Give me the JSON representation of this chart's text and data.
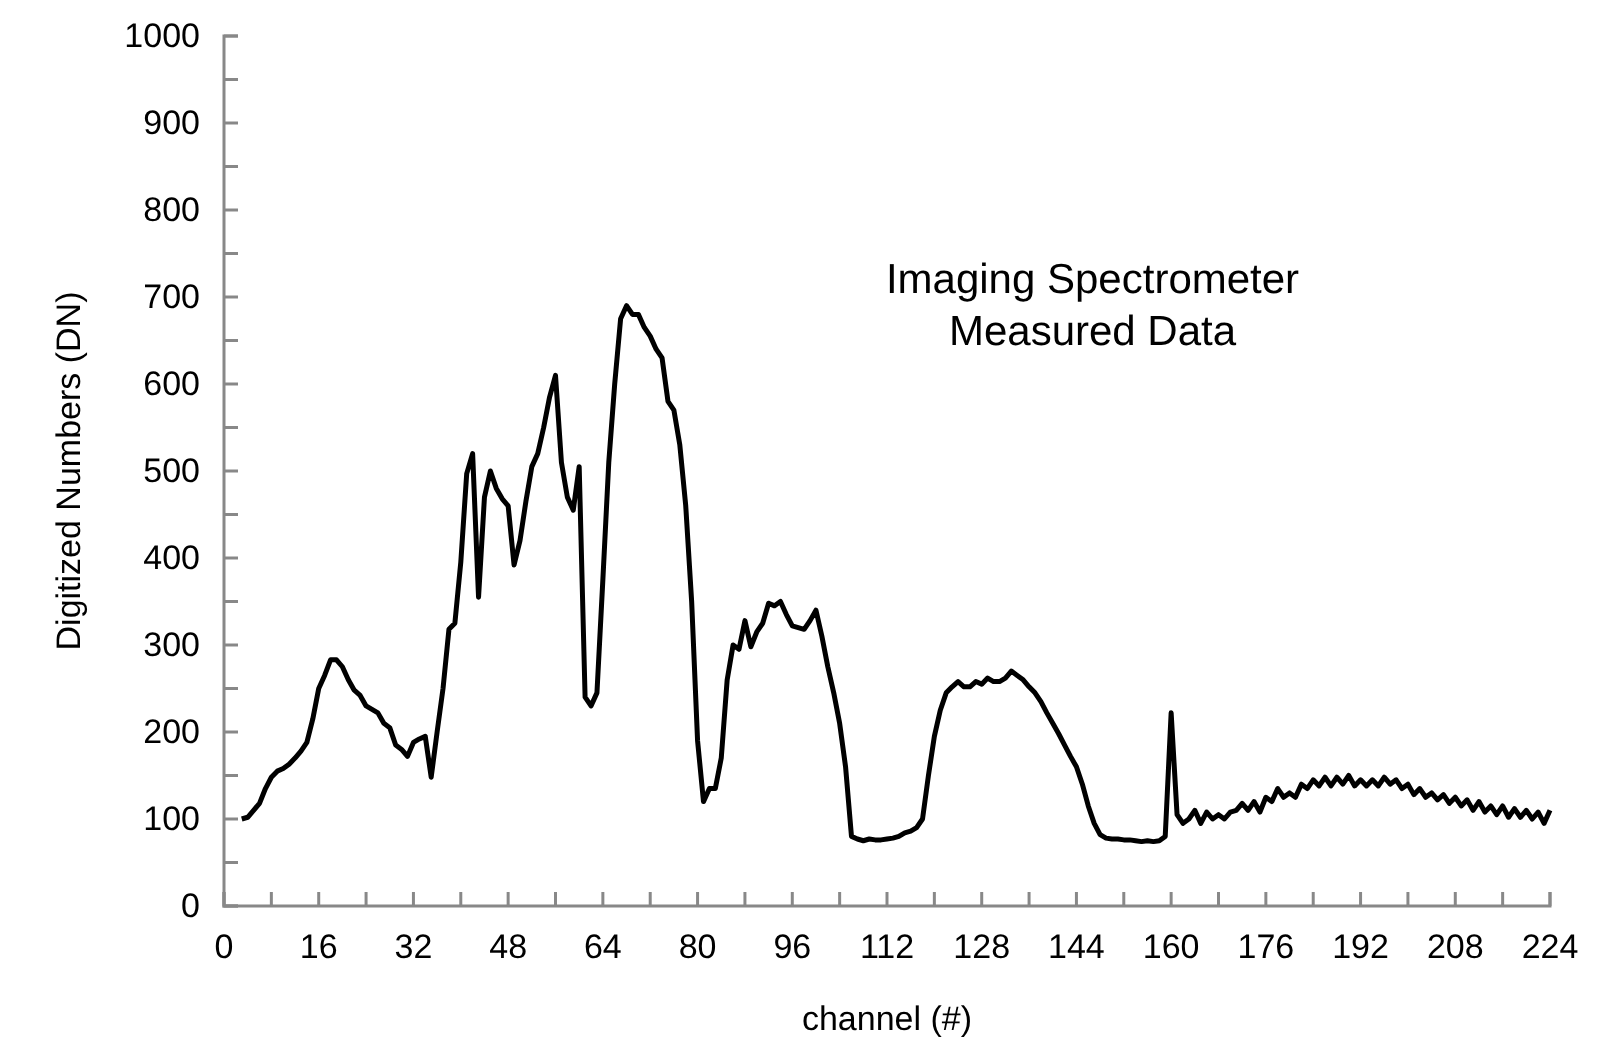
{
  "chart_data": {
    "type": "line",
    "xlabel": "channel (#)",
    "ylabel": "Digitized Numbers (DN)",
    "annotations": [
      "Imaging Spectrometer\nMeasured Data"
    ],
    "xlim": [
      0,
      224
    ],
    "ylim": [
      0,
      1000
    ],
    "xticks": [
      0,
      {
        "value": 8,
        "label": null
      },
      16,
      {
        "value": 24,
        "label": null
      },
      32,
      {
        "value": 40,
        "label": null
      },
      48,
      {
        "value": 56,
        "label": null
      },
      64,
      {
        "value": 72,
        "label": null
      },
      80,
      {
        "value": 88,
        "label": null
      },
      96,
      {
        "value": 104,
        "label": null
      },
      112,
      {
        "value": 120,
        "label": null
      },
      128,
      {
        "value": 136,
        "label": null
      },
      144,
      {
        "value": 152,
        "label": null
      },
      160,
      {
        "value": 168,
        "label": null
      },
      176,
      {
        "value": 184,
        "label": null
      },
      192,
      {
        "value": 200,
        "label": null
      },
      208,
      {
        "value": 216,
        "label": null
      },
      224
    ],
    "yticks": [
      0,
      {
        "value": 50,
        "label": null
      },
      100,
      {
        "value": 150,
        "label": null
      },
      200,
      {
        "value": 250,
        "label": null
      },
      300,
      {
        "value": 350,
        "label": null
      },
      400,
      {
        "value": 450,
        "label": null
      },
      500,
      {
        "value": 550,
        "label": null
      },
      600,
      {
        "value": 650,
        "label": null
      },
      700,
      {
        "value": 750,
        "label": null
      },
      800,
      {
        "value": 850,
        "label": null
      },
      900,
      {
        "value": 950,
        "label": null
      },
      1000
    ],
    "marker": "none",
    "line_style": "solid",
    "series": [
      {
        "color": "#000000",
        "x": [
          3,
          4,
          5,
          6,
          7,
          8,
          9,
          10,
          11,
          12,
          13,
          14,
          15,
          16,
          17,
          18,
          19,
          20,
          21,
          22,
          23,
          24,
          25,
          26,
          27,
          28,
          29,
          30,
          31,
          32,
          33,
          34,
          35,
          36,
          37,
          38,
          39,
          40,
          41,
          42,
          43,
          44,
          45,
          46,
          47,
          48,
          49,
          50,
          51,
          52,
          53,
          54,
          55,
          56,
          57,
          58,
          59,
          60,
          61,
          62,
          63,
          64,
          65,
          66,
          67,
          68,
          69,
          70,
          71,
          72,
          73,
          74,
          75,
          76,
          77,
          78,
          79,
          80,
          81,
          82,
          83,
          84,
          85,
          86,
          87,
          88,
          89,
          90,
          91,
          92,
          93,
          94,
          95,
          96,
          97,
          98,
          99,
          100,
          101,
          102,
          103,
          104,
          105,
          106,
          107,
          108,
          109,
          110,
          111,
          112,
          113,
          114,
          115,
          116,
          117,
          118,
          119,
          120,
          121,
          122,
          123,
          124,
          125,
          126,
          127,
          128,
          129,
          130,
          131,
          132,
          133,
          134,
          135,
          136,
          137,
          138,
          139,
          140,
          141,
          142,
          143,
          144,
          145,
          146,
          147,
          148,
          149,
          150,
          151,
          152,
          153,
          154,
          155,
          156,
          157,
          158,
          159,
          160,
          161,
          162,
          163,
          164,
          165,
          166,
          167,
          168,
          169,
          170,
          171,
          172,
          173,
          174,
          175,
          176,
          177,
          178,
          179,
          180,
          181,
          182,
          183,
          184,
          185,
          186,
          187,
          188,
          189,
          190,
          191,
          192,
          193,
          194,
          195,
          196,
          197,
          198,
          199,
          200,
          201,
          202,
          203,
          204,
          205,
          206,
          207,
          208,
          209,
          210,
          211,
          212,
          213,
          214,
          215,
          216,
          217,
          218,
          219,
          220,
          221,
          222,
          223,
          224
        ],
        "values": [
          100,
          102,
          110,
          118,
          135,
          148,
          155,
          158,
          163,
          170,
          178,
          188,
          215,
          250,
          265,
          283,
          283,
          275,
          260,
          248,
          242,
          230,
          226,
          222,
          210,
          205,
          185,
          180,
          172,
          188,
          192,
          195,
          148,
          200,
          250,
          318,
          325,
          395,
          497,
          520,
          355,
          470,
          500,
          480,
          468,
          460,
          392,
          420,
          465,
          505,
          520,
          550,
          585,
          610,
          510,
          470,
          455,
          505,
          240,
          230,
          245,
          375,
          510,
          600,
          675,
          690,
          680,
          680,
          665,
          655,
          640,
          630,
          580,
          570,
          530,
          460,
          350,
          190,
          120,
          135,
          135,
          170,
          260,
          300,
          295,
          328,
          298,
          315,
          325,
          348,
          345,
          350,
          335,
          322,
          320,
          318,
          328,
          340,
          310,
          275,
          245,
          210,
          160,
          80,
          77,
          75,
          77,
          76,
          76,
          77,
          78,
          80,
          84,
          86,
          90,
          100,
          150,
          195,
          225,
          245,
          252,
          258,
          252,
          252,
          258,
          255,
          262,
          258,
          258,
          262,
          270,
          265,
          260,
          252,
          245,
          235,
          222,
          210,
          198,
          185,
          172,
          160,
          140,
          115,
          95,
          82,
          78,
          77,
          77,
          76,
          76,
          75,
          74,
          75,
          74,
          75,
          80,
          222,
          105,
          95,
          100,
          110,
          95,
          108,
          100,
          105,
          100,
          108,
          110,
          118,
          110,
          120,
          108,
          125,
          120,
          135,
          125,
          130,
          125,
          140,
          135,
          145,
          138,
          148,
          138,
          148,
          140,
          150,
          138,
          145,
          138,
          145,
          138,
          148,
          140,
          145,
          135,
          140,
          128,
          135,
          125,
          130,
          122,
          128,
          118,
          125,
          115,
          122,
          110,
          120,
          108,
          115,
          105,
          115,
          102,
          112,
          102,
          110,
          100,
          108,
          95,
          110
        ]
      }
    ]
  }
}
